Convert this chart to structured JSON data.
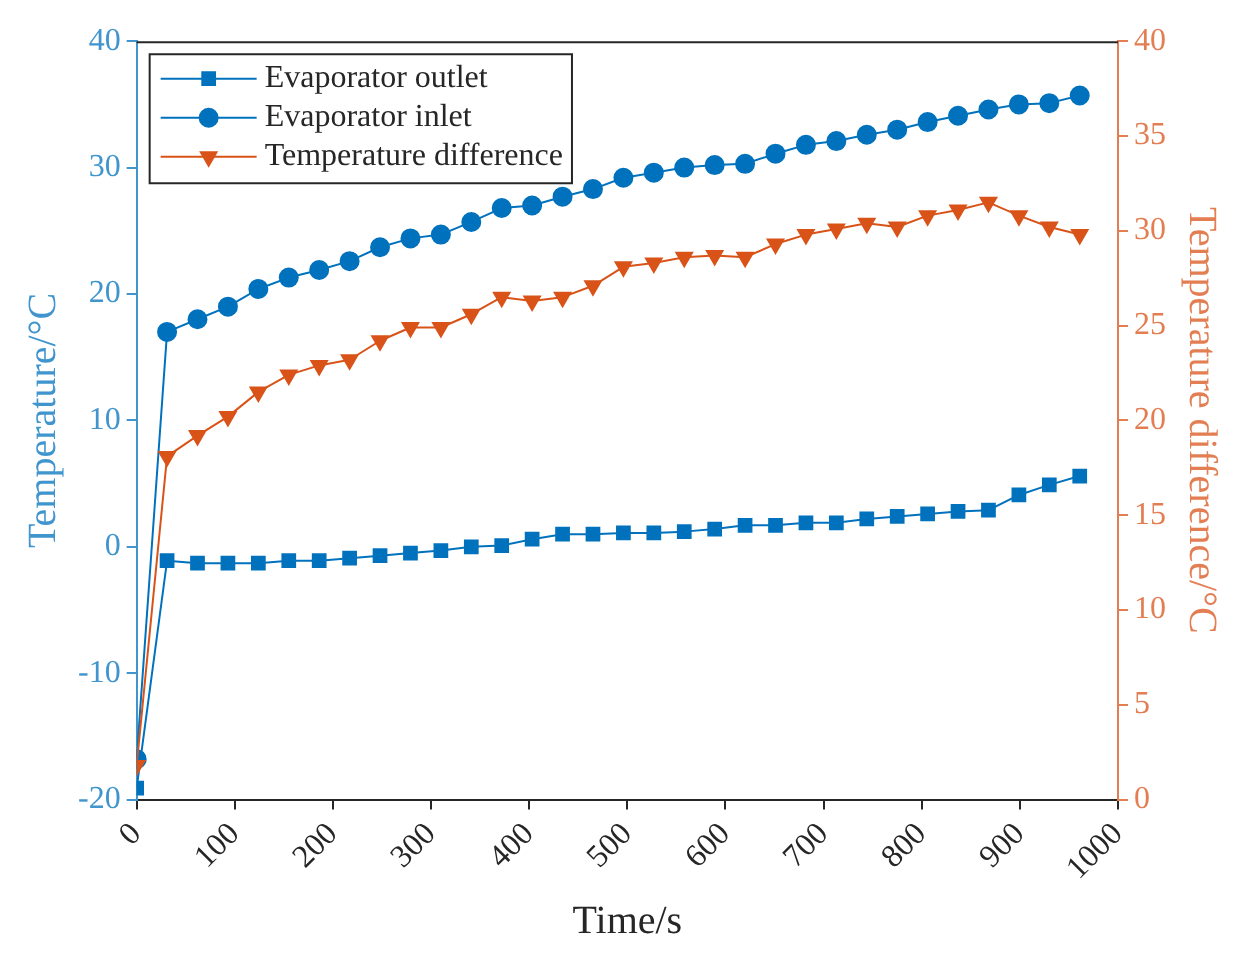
{
  "chart_data": {
    "type": "line",
    "xlabel": "Time/s",
    "ylabel": "Temperature/°C",
    "y2label": "Temperature difference/°C",
    "x": [
      0,
      31,
      62,
      93,
      124,
      155,
      186,
      217,
      248,
      279,
      310,
      341,
      372,
      403,
      434,
      465,
      496,
      527,
      558,
      589,
      620,
      651,
      682,
      713,
      744,
      775,
      806,
      837,
      868,
      899,
      930,
      961
    ],
    "series": [
      {
        "name": "Evaporator outlet",
        "color": "#0072bd",
        "marker": "square",
        "values": [
          -19.1,
          -1.1,
          -1.3,
          -1.3,
          -1.3,
          -1.1,
          -1.1,
          -0.9,
          -0.7,
          -0.5,
          -0.3,
          0.0,
          0.1,
          0.6,
          1.0,
          1.0,
          1.1,
          1.1,
          1.2,
          1.4,
          1.7,
          1.7,
          1.9,
          1.9,
          2.2,
          2.4,
          2.6,
          2.8,
          2.9,
          4.1,
          4.9,
          5.6
        ]
      },
      {
        "name": "Evaporator inlet",
        "color": "#0072bd",
        "marker": "circle",
        "values": [
          -16.8,
          17.0,
          18.0,
          19.0,
          20.4,
          21.3,
          21.9,
          22.6,
          23.7,
          24.4,
          24.7,
          25.7,
          26.8,
          27.0,
          27.7,
          28.3,
          29.2,
          29.6,
          30.0,
          30.2,
          30.3,
          31.1,
          31.8,
          32.1,
          32.6,
          33.0,
          33.6,
          34.1,
          34.6,
          35.0,
          35.1,
          35.7
        ]
      },
      {
        "name": "Temperature difference",
        "color": "#d95319",
        "marker": "triangle",
        "axis": "y2",
        "values": [
          1.8,
          18.1,
          19.2,
          20.2,
          21.5,
          22.4,
          22.9,
          23.2,
          24.2,
          24.9,
          24.9,
          25.6,
          26.5,
          26.3,
          26.5,
          27.1,
          28.1,
          28.3,
          28.6,
          28.7,
          28.6,
          29.3,
          29.8,
          30.1,
          30.4,
          30.2,
          30.8,
          31.1,
          31.5,
          30.8,
          30.2,
          29.8
        ]
      }
    ],
    "xlim": [
      0,
      1000
    ],
    "xticks": [
      0,
      100,
      200,
      300,
      400,
      500,
      600,
      700,
      800,
      900,
      1000
    ],
    "ylim": [
      -20,
      40
    ],
    "yticks": [
      -20,
      -10,
      0,
      10,
      20,
      30,
      40
    ],
    "y2lim": [
      0,
      40
    ],
    "y2ticks": [
      0,
      5,
      10,
      15,
      20,
      25,
      30,
      35,
      40
    ],
    "legend": "top left",
    "grid": false,
    "line_style": "solid"
  }
}
